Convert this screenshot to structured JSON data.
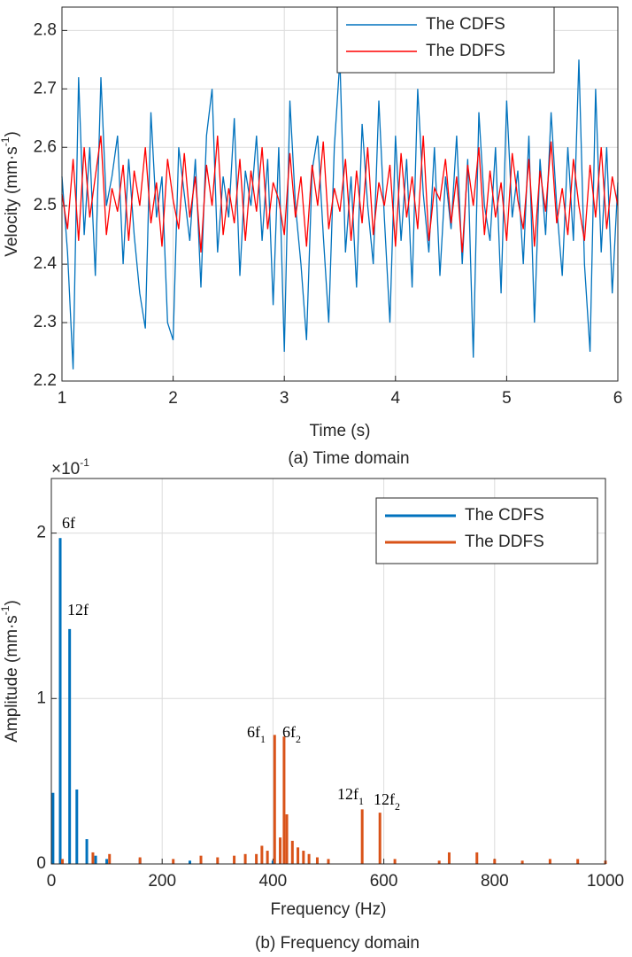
{
  "chart_data": [
    {
      "type": "line",
      "caption": "(a) Time domain",
      "xlabel": "Time (s)",
      "ylabel": [
        "Velocity (mm·s",
        "-1",
        ")"
      ],
      "x": [
        1,
        1.05,
        1.1,
        1.15,
        1.2,
        1.25,
        1.3,
        1.35,
        1.4,
        1.45,
        1.5,
        1.55,
        1.6,
        1.65,
        1.7,
        1.75,
        1.8,
        1.85,
        1.9,
        1.95,
        2,
        2.05,
        2.1,
        2.15,
        2.2,
        2.25,
        2.3,
        2.35,
        2.4,
        2.45,
        2.5,
        2.55,
        2.6,
        2.65,
        2.7,
        2.75,
        2.8,
        2.85,
        2.9,
        2.95,
        3,
        3.05,
        3.1,
        3.15,
        3.2,
        3.25,
        3.3,
        3.35,
        3.4,
        3.45,
        3.5,
        3.55,
        3.6,
        3.65,
        3.7,
        3.75,
        3.8,
        3.85,
        3.9,
        3.95,
        4,
        4.05,
        4.1,
        4.15,
        4.2,
        4.25,
        4.3,
        4.35,
        4.4,
        4.45,
        4.5,
        4.55,
        4.6,
        4.65,
        4.7,
        4.75,
        4.8,
        4.85,
        4.9,
        4.95,
        5,
        5.05,
        5.1,
        5.15,
        5.2,
        5.25,
        5.3,
        5.35,
        5.4,
        5.45,
        5.5,
        5.55,
        5.6,
        5.65,
        5.7,
        5.75,
        5.8,
        5.85,
        5.9,
        5.95,
        6
      ],
      "series": [
        {
          "name": "The CDFS",
          "color": "#0072bd",
          "values": [
            2.55,
            2.42,
            2.22,
            2.72,
            2.45,
            2.6,
            2.38,
            2.72,
            2.5,
            2.55,
            2.62,
            2.4,
            2.58,
            2.45,
            2.35,
            2.29,
            2.66,
            2.48,
            2.55,
            2.3,
            2.27,
            2.6,
            2.52,
            2.44,
            2.58,
            2.36,
            2.62,
            2.7,
            2.42,
            2.55,
            2.48,
            2.65,
            2.38,
            2.56,
            2.5,
            2.62,
            2.44,
            2.58,
            2.33,
            2.6,
            2.25,
            2.68,
            2.5,
            2.4,
            2.27,
            2.56,
            2.62,
            2.45,
            2.3,
            2.6,
            2.75,
            2.42,
            2.55,
            2.36,
            2.64,
            2.5,
            2.4,
            2.68,
            2.48,
            2.3,
            2.62,
            2.44,
            2.58,
            2.36,
            2.7,
            2.52,
            2.42,
            2.6,
            2.38,
            2.55,
            2.46,
            2.62,
            2.4,
            2.58,
            2.24,
            2.66,
            2.5,
            2.44,
            2.6,
            2.35,
            2.68,
            2.48,
            2.56,
            2.4,
            2.62,
            2.3,
            2.58,
            2.45,
            2.66,
            2.5,
            2.38,
            2.6,
            2.44,
            2.75,
            2.4,
            2.25,
            2.7,
            2.42,
            2.6,
            2.35,
            2.54
          ]
        },
        {
          "name": "The DDFS",
          "color": "#ff0000",
          "values": [
            2.52,
            2.46,
            2.58,
            2.44,
            2.6,
            2.48,
            2.55,
            2.62,
            2.45,
            2.53,
            2.49,
            2.57,
            2.44,
            2.56,
            2.5,
            2.6,
            2.47,
            2.54,
            2.43,
            2.58,
            2.51,
            2.46,
            2.59,
            2.48,
            2.55,
            2.42,
            2.57,
            2.5,
            2.62,
            2.45,
            2.53,
            2.47,
            2.58,
            2.44,
            2.56,
            2.49,
            2.6,
            2.46,
            2.54,
            2.51,
            2.45,
            2.59,
            2.48,
            2.55,
            2.43,
            2.57,
            2.5,
            2.61,
            2.46,
            2.53,
            2.49,
            2.58,
            2.44,
            2.56,
            2.47,
            2.6,
            2.45,
            2.54,
            2.5,
            2.57,
            2.43,
            2.59,
            2.48,
            2.55,
            2.46,
            2.62,
            2.44,
            2.53,
            2.51,
            2.58,
            2.47,
            2.55,
            2.42,
            2.57,
            2.5,
            2.6,
            2.45,
            2.56,
            2.48,
            2.54,
            2.44,
            2.59,
            2.51,
            2.46,
            2.58,
            2.43,
            2.56,
            2.49,
            2.61,
            2.47,
            2.53,
            2.45,
            2.58,
            2.5,
            2.44,
            2.57,
            2.48,
            2.6,
            2.46,
            2.55,
            2.5
          ]
        }
      ],
      "xlim": [
        1,
        6
      ],
      "xticks": [
        1,
        2,
        3,
        4,
        5,
        6
      ],
      "ylim": [
        2.2,
        2.84
      ],
      "yticks": [
        2.2,
        2.3,
        2.4,
        2.5,
        2.6,
        2.7,
        2.8
      ],
      "grid": true,
      "legend": "top-right"
    },
    {
      "type": "bar",
      "caption": "(b) Frequency domain",
      "xlabel": "Frequency (Hz)",
      "ylabel": [
        "Amplitude (mm·s",
        "-1",
        ")"
      ],
      "y_multiplier": [
        "×10",
        "-1"
      ],
      "series": [
        {
          "name": "The CDFS",
          "color": "#0072bd",
          "x": [
            3,
            16,
            33,
            46,
            64,
            80,
            100,
            160,
            250,
            400
          ],
          "values": [
            0.43,
            1.97,
            1.42,
            0.45,
            0.15,
            0.05,
            0.03,
            0.03,
            0.02,
            0.02
          ]
        },
        {
          "name": "The DDFS",
          "color": "#d95319",
          "x": [
            20,
            75,
            105,
            160,
            220,
            270,
            300,
            330,
            350,
            370,
            380,
            390,
            403,
            413,
            420,
            425,
            435,
            445,
            455,
            465,
            480,
            500,
            561,
            593,
            620,
            700,
            718,
            768,
            800,
            850,
            900,
            950,
            1000
          ],
          "values": [
            0.03,
            0.07,
            0.06,
            0.04,
            0.03,
            0.05,
            0.04,
            0.05,
            0.06,
            0.06,
            0.11,
            0.08,
            0.78,
            0.16,
            0.77,
            0.3,
            0.14,
            0.1,
            0.08,
            0.06,
            0.04,
            0.03,
            0.33,
            0.31,
            0.03,
            0.02,
            0.07,
            0.07,
            0.03,
            0.02,
            0.03,
            0.03,
            0.02
          ]
        }
      ],
      "annotations": [
        {
          "text": "6f"
        },
        {
          "text": "12f"
        },
        {
          "text": "6f",
          "sub": "1"
        },
        {
          "text": "6f",
          "sub": "2"
        },
        {
          "text": "12f",
          "sub": "1"
        },
        {
          "text": "12f",
          "sub": "2"
        }
      ],
      "xlim": [
        0,
        1000
      ],
      "xticks": [
        0,
        200,
        400,
        600,
        800,
        1000
      ],
      "ylim": [
        0,
        2.33
      ],
      "yticks": [
        0,
        1,
        2
      ],
      "grid": true,
      "legend": "top-right"
    }
  ]
}
